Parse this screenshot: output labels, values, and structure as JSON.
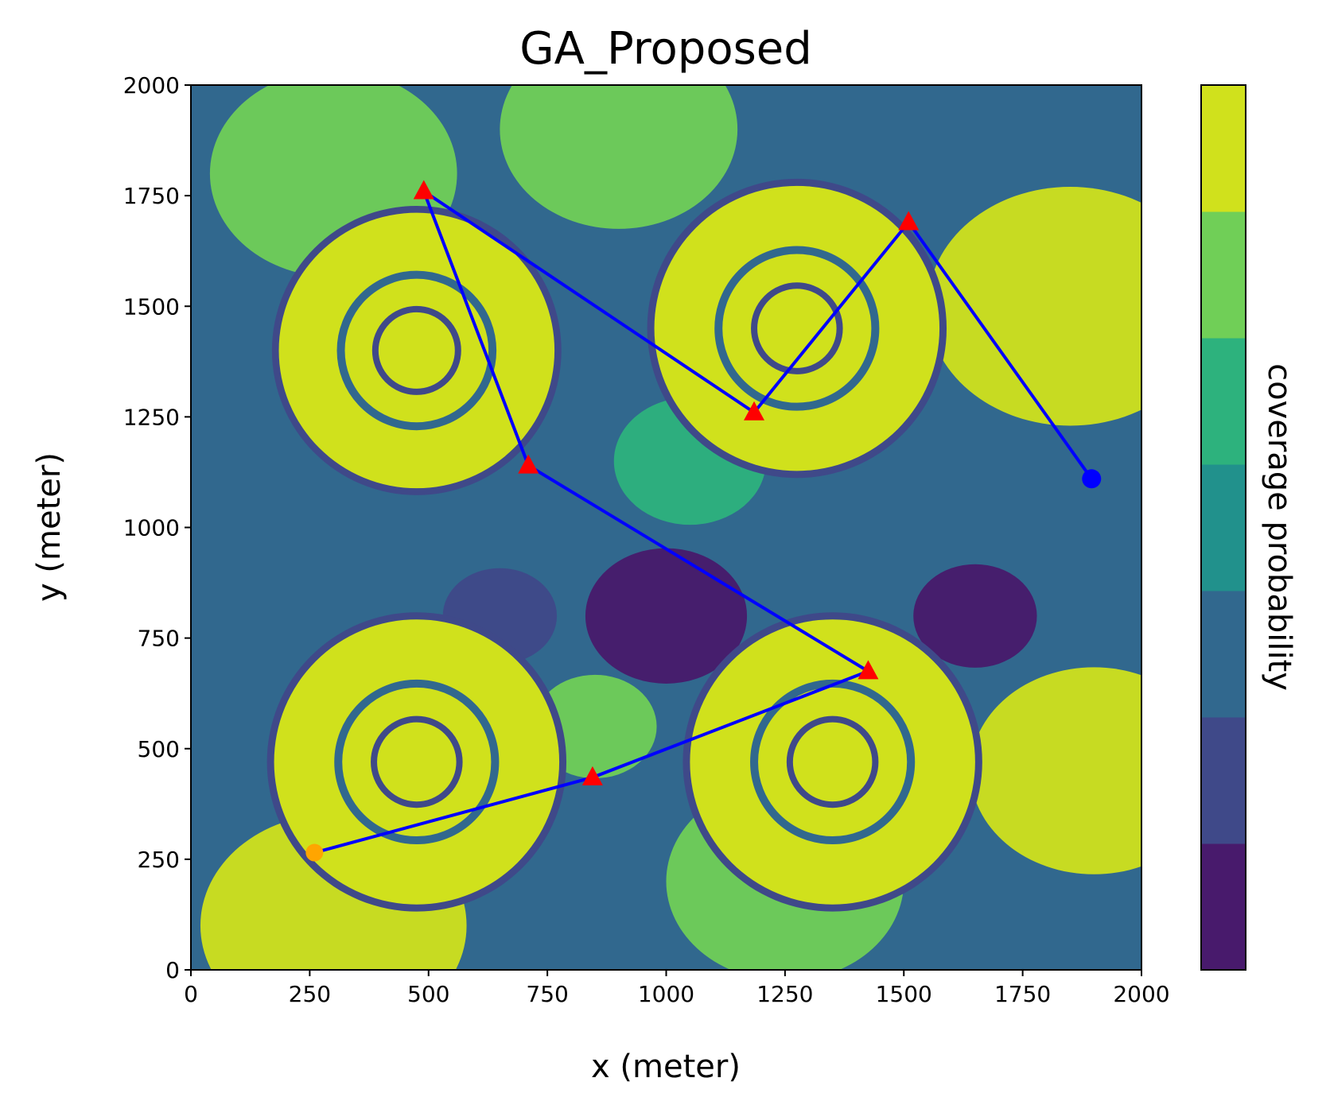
{
  "chart_data": {
    "type": "heatmap",
    "title": "GA_Proposed",
    "xlabel": "x (meter)",
    "ylabel": "y (meter)",
    "xlim": [
      0,
      2000
    ],
    "ylim": [
      0,
      2000
    ],
    "xticks": [
      "0",
      "250",
      "500",
      "750",
      "1000",
      "1250",
      "1500",
      "1750",
      "2000"
    ],
    "yticks": [
      "0",
      "250",
      "500",
      "750",
      "1000",
      "1250",
      "1500",
      "1750",
      "2000"
    ],
    "colorbar": {
      "label": "coverage probability",
      "levels": 7,
      "colors": [
        "#481a6c",
        "#3f4989",
        "#31688e",
        "#21918c",
        "#2db27d",
        "#70cf57",
        "#d0e11c"
      ]
    },
    "path": {
      "color": "#0000ff",
      "points": [
        [
          260,
          265
        ],
        [
          845,
          435
        ],
        [
          1425,
          675
        ],
        [
          710,
          1140
        ],
        [
          490,
          1760
        ],
        [
          1185,
          1260
        ],
        [
          1510,
          1690
        ],
        [
          1895,
          1110
        ]
      ]
    },
    "start_point": {
      "x": 260,
      "y": 265,
      "color": "#ffa500"
    },
    "end_point": {
      "x": 1895,
      "y": 1110,
      "color": "#0000ff"
    },
    "waypoints": {
      "color": "#ff0000",
      "points": [
        [
          845,
          435
        ],
        [
          1425,
          675
        ],
        [
          710,
          1140
        ],
        [
          490,
          1760
        ],
        [
          1185,
          1260
        ],
        [
          1510,
          1690
        ]
      ]
    },
    "sensors": [
      {
        "x": 475,
        "y": 1400,
        "r": 290
      },
      {
        "x": 1275,
        "y": 1450,
        "r": 300
      },
      {
        "x": 475,
        "y": 470,
        "r": 300
      },
      {
        "x": 1350,
        "y": 470,
        "r": 300
      }
    ]
  }
}
